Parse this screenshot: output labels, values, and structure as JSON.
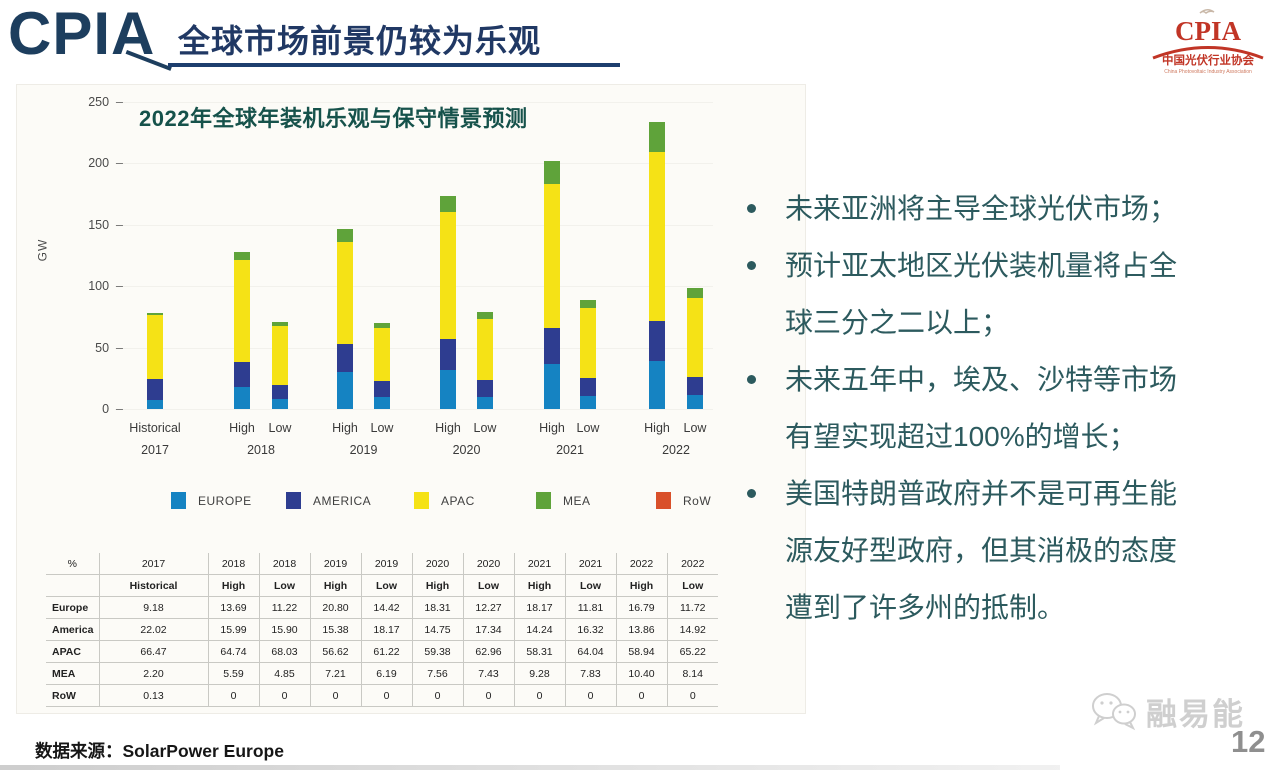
{
  "header": {
    "brand": "CPIA",
    "title": "全球市场前景仍较为乐观",
    "logo": {
      "brand": "CPIA",
      "org_cn": "中国光伏行业协会",
      "org_en": "China Photovoltaic Industry Association"
    }
  },
  "chart_data": {
    "type": "bar",
    "stacked": true,
    "title": "2022年全球年装机乐观与保守情景预测",
    "ylabel": "GW",
    "ylim": [
      0,
      250
    ],
    "yticks": [
      0,
      50,
      100,
      150,
      200,
      250
    ],
    "years": [
      "2017",
      "2018",
      "2019",
      "2020",
      "2021",
      "2022"
    ],
    "series": [
      "EUROPE",
      "AMERICA",
      "APAC",
      "MEA",
      "RoW"
    ],
    "colors": {
      "EUROPE": "#1583c2",
      "AMERICA": "#2e3d90",
      "APAC": "#f5e216",
      "MEA": "#5fa33a",
      "RoW": "#d9502a"
    },
    "legend": [
      "EUROPE",
      "AMERICA",
      "APAC",
      "MEA",
      "RoW"
    ],
    "bars": [
      {
        "year": "2017",
        "scenario": "Historical",
        "total_gw": 78,
        "shares_pct": {
          "EUROPE": 9.18,
          "AMERICA": 22.02,
          "APAC": 66.47,
          "MEA": 2.2,
          "RoW": 0.13
        }
      },
      {
        "year": "2018",
        "scenario": "High",
        "total_gw": 128,
        "shares_pct": {
          "EUROPE": 13.69,
          "AMERICA": 15.99,
          "APAC": 64.74,
          "MEA": 5.59,
          "RoW": 0
        }
      },
      {
        "year": "2018",
        "scenario": "Low",
        "total_gw": 71,
        "shares_pct": {
          "EUROPE": 11.22,
          "AMERICA": 15.9,
          "APAC": 68.03,
          "MEA": 4.85,
          "RoW": 0
        }
      },
      {
        "year": "2019",
        "scenario": "High",
        "total_gw": 146,
        "shares_pct": {
          "EUROPE": 20.8,
          "AMERICA": 15.38,
          "APAC": 56.62,
          "MEA": 7.21,
          "RoW": 0
        }
      },
      {
        "year": "2019",
        "scenario": "Low",
        "total_gw": 70,
        "shares_pct": {
          "EUROPE": 14.42,
          "AMERICA": 18.17,
          "APAC": 61.22,
          "MEA": 6.19,
          "RoW": 0
        }
      },
      {
        "year": "2020",
        "scenario": "High",
        "total_gw": 173,
        "shares_pct": {
          "EUROPE": 18.31,
          "AMERICA": 14.75,
          "APAC": 59.38,
          "MEA": 7.56,
          "RoW": 0
        }
      },
      {
        "year": "2020",
        "scenario": "Low",
        "total_gw": 79,
        "shares_pct": {
          "EUROPE": 12.27,
          "AMERICA": 17.34,
          "APAC": 62.96,
          "MEA": 7.43,
          "RoW": 0
        }
      },
      {
        "year": "2021",
        "scenario": "High",
        "total_gw": 202,
        "shares_pct": {
          "EUROPE": 18.17,
          "AMERICA": 14.24,
          "APAC": 58.31,
          "MEA": 9.28,
          "RoW": 0
        }
      },
      {
        "year": "2021",
        "scenario": "Low",
        "total_gw": 89,
        "shares_pct": {
          "EUROPE": 11.81,
          "AMERICA": 16.32,
          "APAC": 64.04,
          "MEA": 7.83,
          "RoW": 0
        }
      },
      {
        "year": "2022",
        "scenario": "High",
        "total_gw": 233,
        "shares_pct": {
          "EUROPE": 16.79,
          "AMERICA": 13.86,
          "APAC": 58.94,
          "MEA": 10.4,
          "RoW": 0
        }
      },
      {
        "year": "2022",
        "scenario": "Low",
        "total_gw": 98,
        "shares_pct": {
          "EUROPE": 11.72,
          "AMERICA": 14.92,
          "APAC": 65.22,
          "MEA": 8.14,
          "RoW": 0
        }
      }
    ]
  },
  "table": {
    "unit_header": "%",
    "col_years": [
      "2017",
      "2018",
      "2018",
      "2019",
      "2019",
      "2020",
      "2020",
      "2021",
      "2021",
      "2022",
      "2022"
    ],
    "col_scenarios": [
      "Historical",
      "High",
      "Low",
      "High",
      "Low",
      "High",
      "Low",
      "High",
      "Low",
      "High",
      "Low"
    ],
    "rows": [
      {
        "label": "Europe",
        "values": [
          "9.18",
          "13.69",
          "11.22",
          "20.80",
          "14.42",
          "18.31",
          "12.27",
          "18.17",
          "11.81",
          "16.79",
          "11.72"
        ]
      },
      {
        "label": "America",
        "values": [
          "22.02",
          "15.99",
          "15.90",
          "15.38",
          "18.17",
          "14.75",
          "17.34",
          "14.24",
          "16.32",
          "13.86",
          "14.92"
        ]
      },
      {
        "label": "APAC",
        "values": [
          "66.47",
          "64.74",
          "68.03",
          "56.62",
          "61.22",
          "59.38",
          "62.96",
          "58.31",
          "64.04",
          "58.94",
          "65.22"
        ]
      },
      {
        "label": "MEA",
        "values": [
          "2.20",
          "5.59",
          "4.85",
          "7.21",
          "6.19",
          "7.56",
          "7.43",
          "9.28",
          "7.83",
          "10.40",
          "8.14"
        ]
      },
      {
        "label": "RoW",
        "values": [
          "0.13",
          "0",
          "0",
          "0",
          "0",
          "0",
          "0",
          "0",
          "0",
          "0",
          "0"
        ]
      }
    ]
  },
  "bullets": [
    "未来亚洲将主导全球光伏市场；",
    "预计亚太地区光伏装机量将占全\n球三分之二以上；",
    "未来五年中，埃及、沙特等市场\n有望实现超过100%的增长；",
    "美国特朗普政府并不是可再生能\n源友好型政府，但其消极的态度\n遭到了许多州的抵制。"
  ],
  "footer": {
    "source": "数据来源：SolarPower Europe",
    "watermark": "融易能",
    "page": "12"
  }
}
